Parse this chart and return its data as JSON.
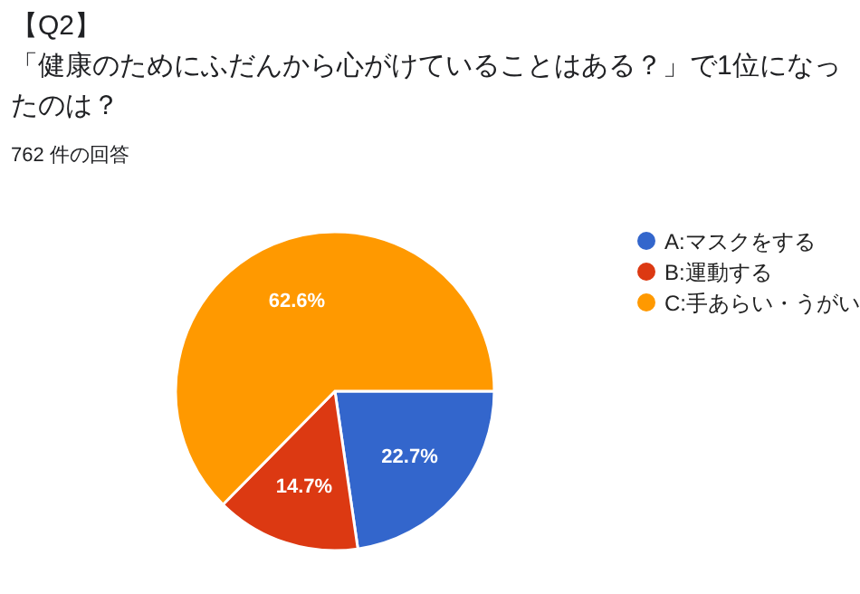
{
  "chart_data": {
    "type": "pie",
    "title": "【Q2】",
    "subtitle": "「健康のためにふだんから心がけていることはある？」で1位になったのは？",
    "annotations": [
      "762 件の回答"
    ],
    "categories": [
      "A:マスクをする",
      "B:運動する",
      "C:手あらい・うがい"
    ],
    "values": [
      22.7,
      14.7,
      62.6
    ],
    "colors": [
      "#3366cc",
      "#dc3912",
      "#ff9900"
    ],
    "value_labels": [
      "22.7%",
      "14.7%",
      "62.6%"
    ],
    "legend": "right"
  }
}
